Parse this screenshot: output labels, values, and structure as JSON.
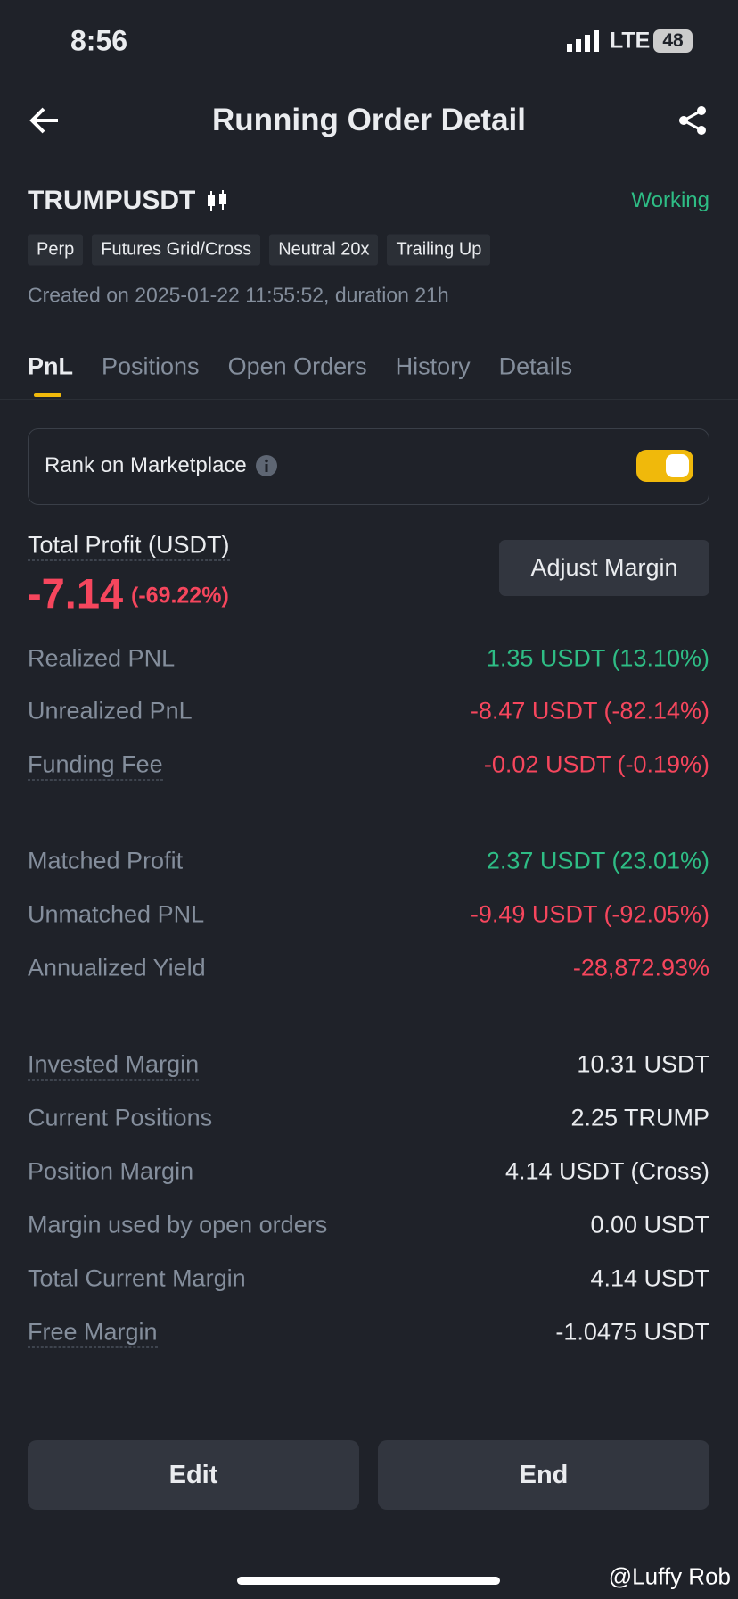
{
  "status_bar": {
    "time": "8:56",
    "network": "LTE",
    "battery": "48"
  },
  "header": {
    "title": "Running Order Detail"
  },
  "pair": {
    "symbol": "TRUMPUSDT",
    "status": "Working"
  },
  "tags": [
    "Perp",
    "Futures Grid/Cross",
    "Neutral 20x",
    "Trailing Up"
  ],
  "created": "Created on 2025-01-22 11:55:52, duration 21h",
  "tabs": [
    "PnL",
    "Positions",
    "Open Orders",
    "History",
    "Details"
  ],
  "rank_label": "Rank on Marketplace",
  "total_profit": {
    "label": "Total Profit (USDT)",
    "value": "-7.14",
    "percent": "(-69.22%)"
  },
  "adjust_button": "Adjust Margin",
  "sections": [
    [
      {
        "label": "Realized PNL",
        "value": "1.35 USDT (13.10%)",
        "color": "#2ebd85",
        "underline": false
      },
      {
        "label": "Unrealized PnL",
        "value": "-8.47 USDT (-82.14%)",
        "color": "#f6465d",
        "underline": false
      },
      {
        "label": "Funding Fee",
        "value": "-0.02 USDT (-0.19%)",
        "color": "#f6465d",
        "underline": true
      }
    ],
    [
      {
        "label": "Matched Profit",
        "value": "2.37 USDT (23.01%)",
        "color": "#2ebd85",
        "underline": false
      },
      {
        "label": "Unmatched PNL",
        "value": "-9.49 USDT (-92.05%)",
        "color": "#f6465d",
        "underline": false
      },
      {
        "label": "Annualized Yield",
        "value": "-28,872.93%",
        "color": "#f6465d",
        "underline": false
      }
    ],
    [
      {
        "label": "Invested Margin",
        "value": "10.31 USDT",
        "color": "#eaecef",
        "underline": true
      },
      {
        "label": "Current Positions",
        "value": "2.25 TRUMP",
        "color": "#eaecef",
        "underline": false
      },
      {
        "label": "Position Margin",
        "value": "4.14 USDT (Cross)",
        "color": "#eaecef",
        "underline": false
      },
      {
        "label": "Margin used by open orders",
        "value": "0.00 USDT",
        "color": "#eaecef",
        "underline": false
      },
      {
        "label": "Total Current Margin",
        "value": "4.14 USDT",
        "color": "#eaecef",
        "underline": false
      },
      {
        "label": "Free Margin",
        "value": "-1.0475 USDT",
        "color": "#eaecef",
        "underline": true
      }
    ]
  ],
  "buttons": [
    "Edit",
    "End"
  ],
  "watermark": "@Luffy Rob"
}
